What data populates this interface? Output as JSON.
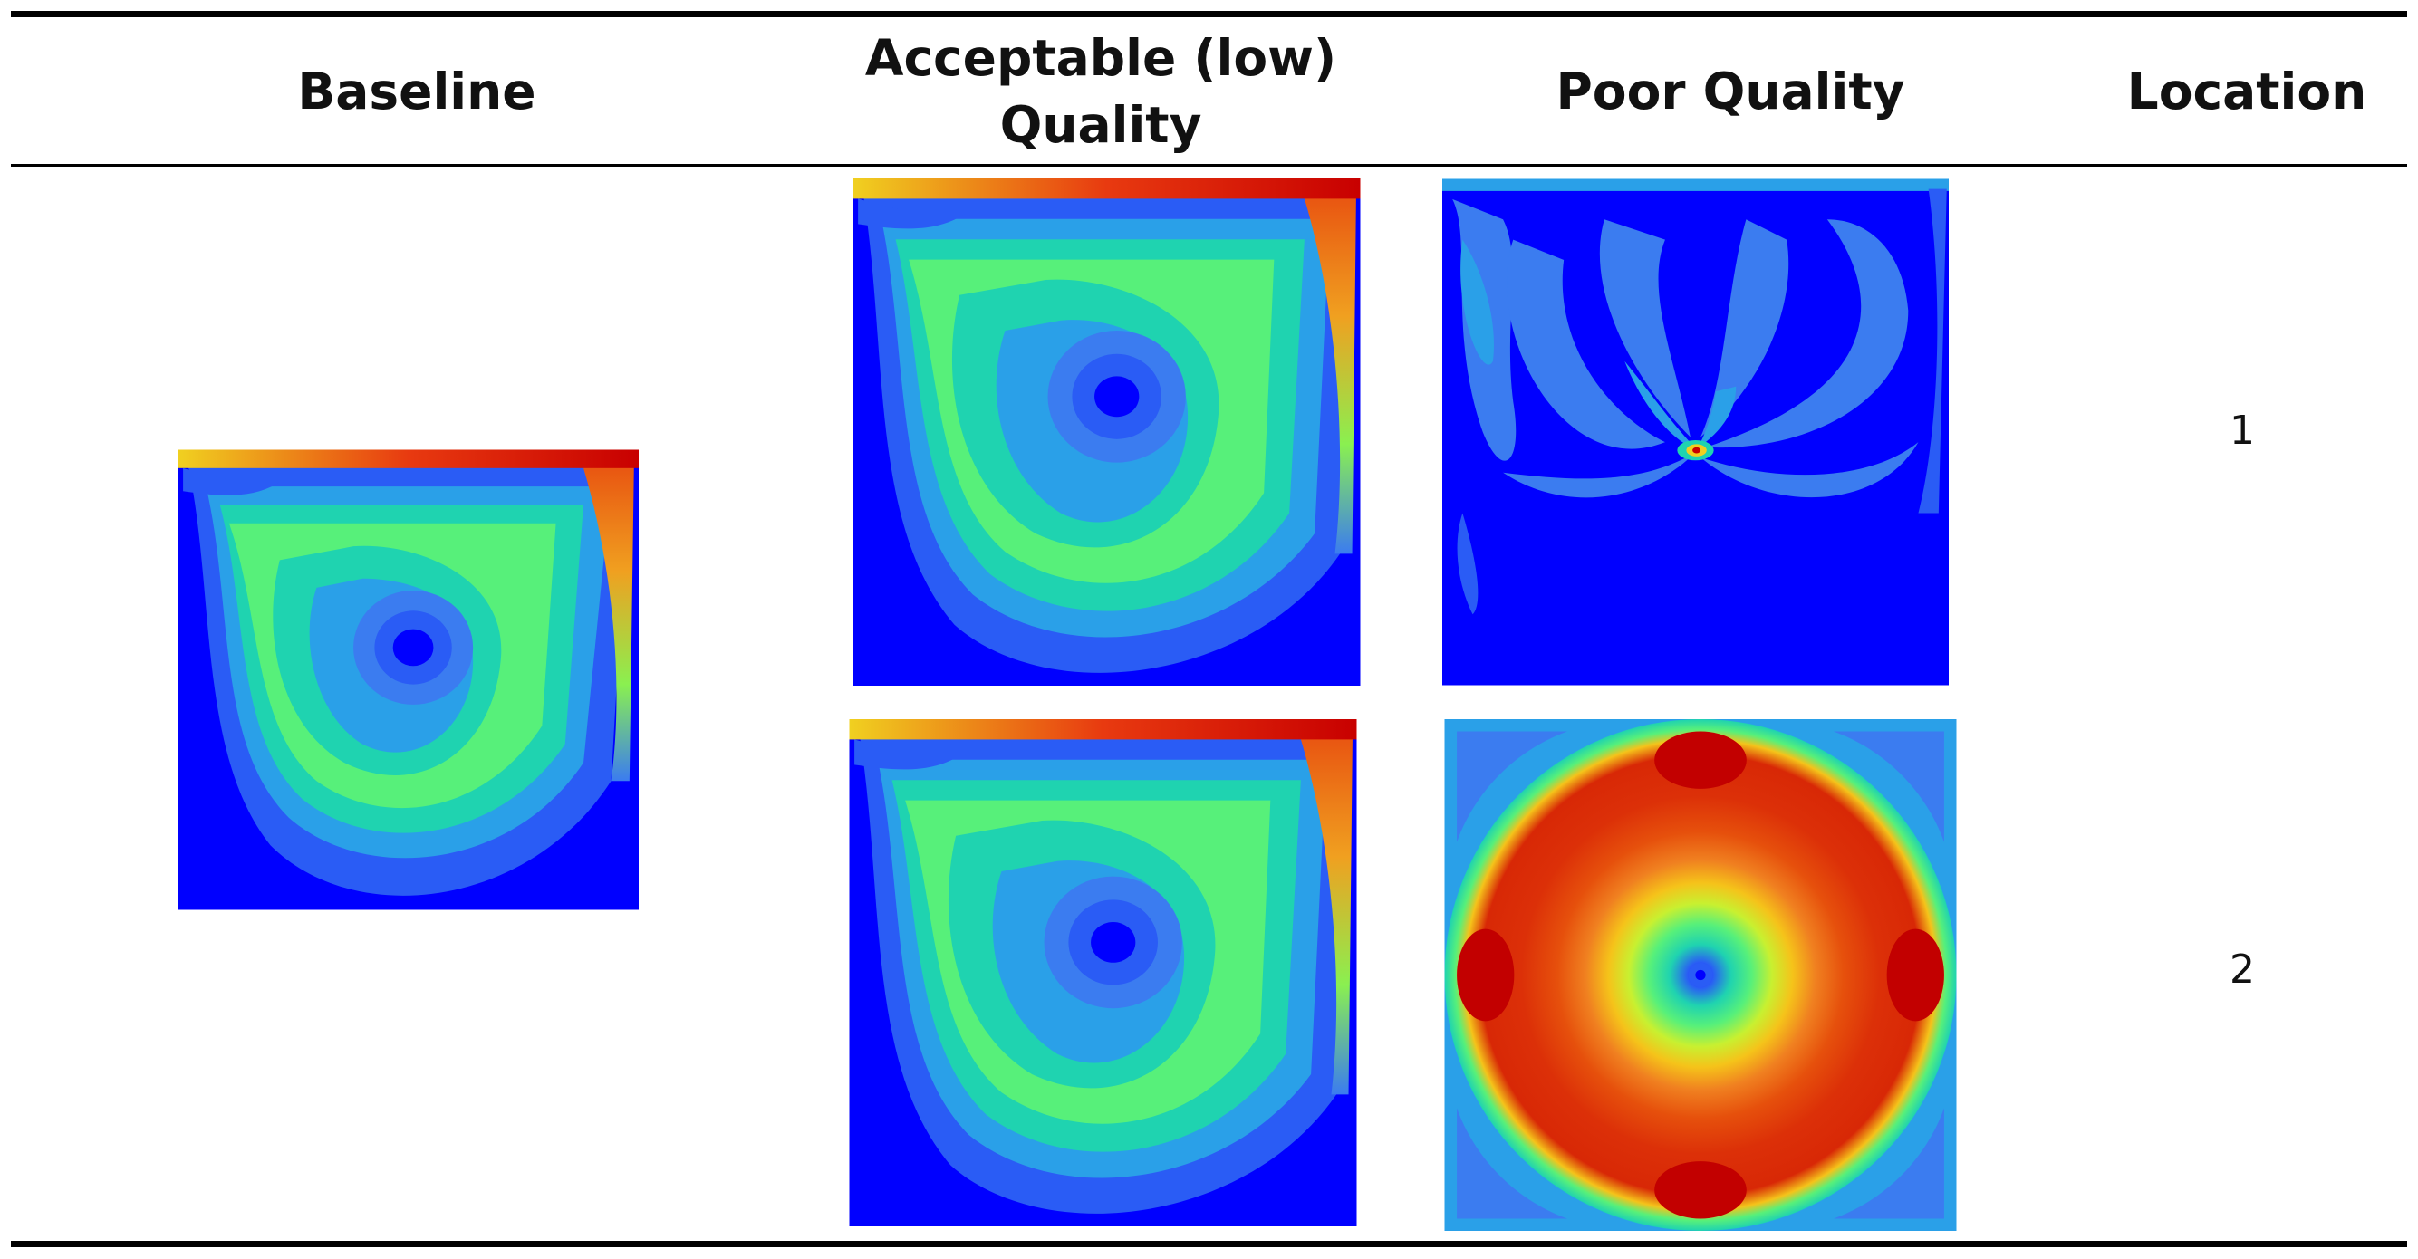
{
  "table": {
    "headers": {
      "baseline": "Baseline",
      "acceptable_line1": "Acceptable (low)",
      "acceptable_line2": "Quality",
      "poor": "Poor Quality",
      "location": "Location"
    },
    "rows": [
      {
        "location": "1"
      },
      {
        "location": "2"
      }
    ]
  },
  "colormap": {
    "low": "#0000ff",
    "mid_low": "#3b7cf0",
    "mid": "#1fd3b0",
    "mid_high": "#57f07a",
    "high_mid": "#f5c31a",
    "high": "#e6300c",
    "max": "#c20000"
  }
}
